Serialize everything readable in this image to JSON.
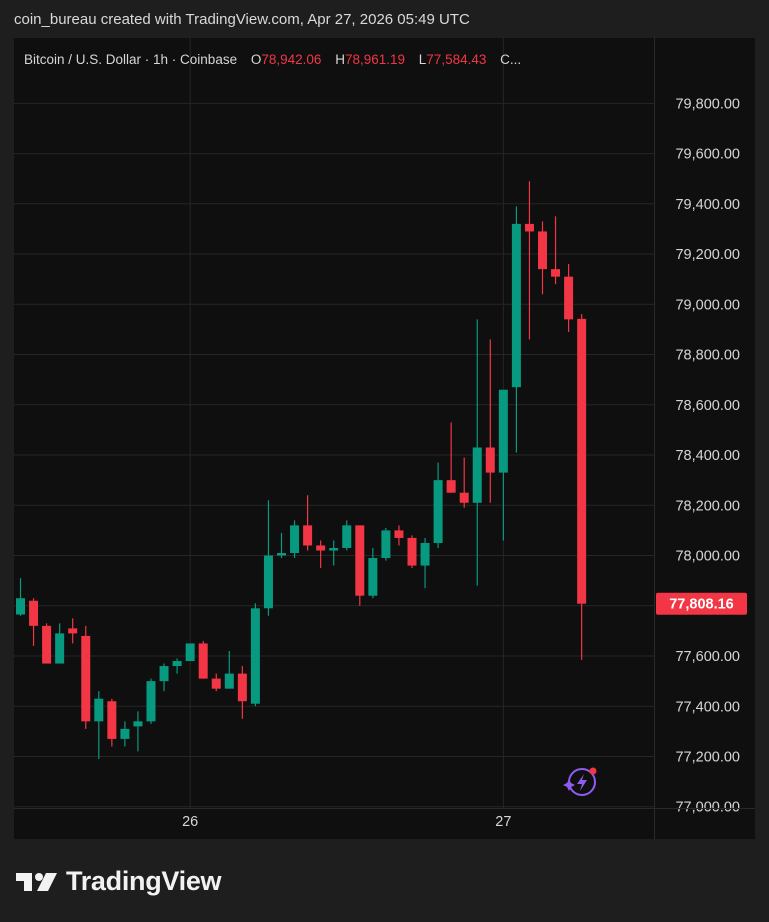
{
  "header": {
    "attribution": "coin_bureau created with TradingView.com, Apr 27, 2026 05:49 UTC"
  },
  "legend": {
    "symbol": "Bitcoin / U.S. Dollar · 1h · Coinbase",
    "open_label": "O",
    "open_value": "78,942.06",
    "high_label": "H",
    "high_value": "78,961.19",
    "low_label": "L",
    "low_value": "77,584.43",
    "close_label": "C..."
  },
  "footer": {
    "brand": "TradingView"
  },
  "colors": {
    "up": "#089981",
    "down": "#f23645",
    "background": "#0f0f0f",
    "grid": "#262626",
    "text": "#d6d6d6",
    "price_tag": "#f23645"
  },
  "icons": {
    "logo": "tradingview-logo-icon",
    "assistant": "sparkle-bolt-icon"
  },
  "chart_data": {
    "type": "candlestick",
    "y_tick_labels": [
      "79,800.00",
      "79,600.00",
      "79,400.00",
      "79,200.00",
      "79,000.00",
      "78,800.00",
      "78,600.00",
      "78,400.00",
      "78,200.00",
      "78,000.00",
      "77,800.00",
      "77,600.00",
      "77,400.00",
      "77,200.00",
      "77,000.00"
    ],
    "y_ticks": [
      79800,
      79600,
      79400,
      79200,
      79000,
      78800,
      78600,
      78400,
      78200,
      78000,
      77800,
      77600,
      77400,
      77200,
      77000
    ],
    "ylim": [
      76995,
      80060
    ],
    "x_ticks": [
      {
        "label": "26",
        "index": 13
      },
      {
        "label": "27",
        "index": 37
      }
    ],
    "last_price": 77808.16,
    "last_price_label": "77,808.16",
    "grid": true,
    "candles": [
      {
        "o": 77765,
        "h": 77910,
        "l": 77760,
        "c": 77830
      },
      {
        "o": 77820,
        "h": 77830,
        "l": 77640,
        "c": 77720
      },
      {
        "o": 77720,
        "h": 77730,
        "l": 77570,
        "c": 77570
      },
      {
        "o": 77570,
        "h": 77730,
        "l": 77570,
        "c": 77690
      },
      {
        "o": 77710,
        "h": 77750,
        "l": 77650,
        "c": 77690
      },
      {
        "o": 77680,
        "h": 77720,
        "l": 77310,
        "c": 77340
      },
      {
        "o": 77340,
        "h": 77460,
        "l": 77190,
        "c": 77430
      },
      {
        "o": 77420,
        "h": 77430,
        "l": 77240,
        "c": 77270
      },
      {
        "o": 77270,
        "h": 77340,
        "l": 77240,
        "c": 77310
      },
      {
        "o": 77320,
        "h": 77380,
        "l": 77220,
        "c": 77340
      },
      {
        "o": 77340,
        "h": 77510,
        "l": 77330,
        "c": 77500
      },
      {
        "o": 77500,
        "h": 77570,
        "l": 77460,
        "c": 77560
      },
      {
        "o": 77560,
        "h": 77590,
        "l": 77530,
        "c": 77580
      },
      {
        "o": 77580,
        "h": 77650,
        "l": 77580,
        "c": 77650
      },
      {
        "o": 77650,
        "h": 77660,
        "l": 77510,
        "c": 77510
      },
      {
        "o": 77510,
        "h": 77530,
        "l": 77460,
        "c": 77470
      },
      {
        "o": 77470,
        "h": 77620,
        "l": 77470,
        "c": 77530
      },
      {
        "o": 77530,
        "h": 77560,
        "l": 77350,
        "c": 77420
      },
      {
        "o": 77410,
        "h": 77810,
        "l": 77400,
        "c": 77790
      },
      {
        "o": 77790,
        "h": 78220,
        "l": 77760,
        "c": 78000
      },
      {
        "o": 78000,
        "h": 78090,
        "l": 77990,
        "c": 78010
      },
      {
        "o": 78010,
        "h": 78140,
        "l": 77990,
        "c": 78120
      },
      {
        "o": 78120,
        "h": 78240,
        "l": 78020,
        "c": 78040
      },
      {
        "o": 78040,
        "h": 78060,
        "l": 77950,
        "c": 78020
      },
      {
        "o": 78020,
        "h": 78060,
        "l": 77960,
        "c": 78030
      },
      {
        "o": 78030,
        "h": 78140,
        "l": 78020,
        "c": 78120
      },
      {
        "o": 78120,
        "h": 78120,
        "l": 77800,
        "c": 77840
      },
      {
        "o": 77840,
        "h": 78030,
        "l": 77830,
        "c": 77990
      },
      {
        "o": 77990,
        "h": 78110,
        "l": 77980,
        "c": 78100
      },
      {
        "o": 78100,
        "h": 78120,
        "l": 78040,
        "c": 78070
      },
      {
        "o": 78070,
        "h": 78080,
        "l": 77950,
        "c": 77960
      },
      {
        "o": 77960,
        "h": 78070,
        "l": 77870,
        "c": 78050
      },
      {
        "o": 78050,
        "h": 78370,
        "l": 78030,
        "c": 78300
      },
      {
        "o": 78300,
        "h": 78530,
        "l": 78250,
        "c": 78250
      },
      {
        "o": 78250,
        "h": 78390,
        "l": 78190,
        "c": 78210
      },
      {
        "o": 78210,
        "h": 78940,
        "l": 77880,
        "c": 78430
      },
      {
        "o": 78430,
        "h": 78860,
        "l": 78210,
        "c": 78330
      },
      {
        "o": 78330,
        "h": 78640,
        "l": 78060,
        "c": 78660
      },
      {
        "o": 78670,
        "h": 79390,
        "l": 78410,
        "c": 79320
      },
      {
        "o": 79320,
        "h": 79490,
        "l": 78860,
        "c": 79290
      },
      {
        "o": 79290,
        "h": 79330,
        "l": 79040,
        "c": 79140
      },
      {
        "o": 79140,
        "h": 79350,
        "l": 79080,
        "c": 79110
      },
      {
        "o": 79110,
        "h": 79160,
        "l": 78890,
        "c": 78940
      },
      {
        "o": 78942.06,
        "h": 78961.19,
        "l": 77584.43,
        "c": 77808.16
      }
    ]
  }
}
